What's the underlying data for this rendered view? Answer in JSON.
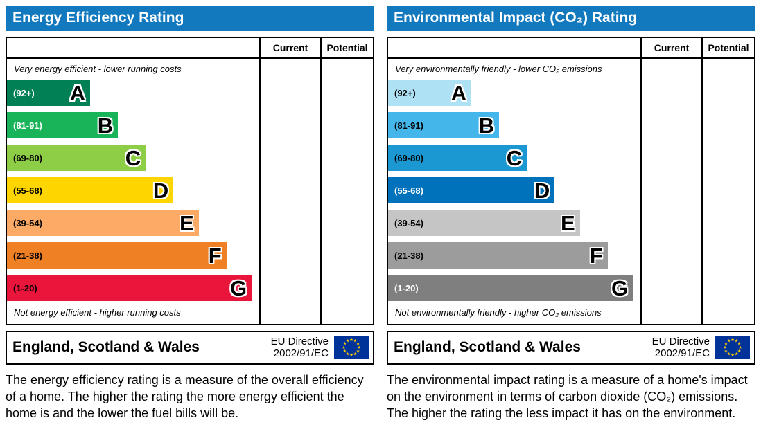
{
  "theme": {
    "header_bg": "#1279be",
    "border_color": "#000000",
    "eu_flag_bg": "#003399",
    "eu_flag_star": "#ffcc00"
  },
  "icons": {
    "eu_flag_star_glyph": "★"
  },
  "panels": [
    {
      "title": "Energy Efficiency Rating",
      "columns": [
        "Current",
        "Potential"
      ],
      "top_caption": "Very energy efficient - lower running costs",
      "bottom_caption": "Not energy efficient - higher running costs",
      "bands": [
        {
          "letter": "A",
          "range": "(92+)",
          "color": "#008054",
          "width_pct": 33,
          "range_text_color": "#ffffff"
        },
        {
          "letter": "B",
          "range": "(81-91)",
          "color": "#19b459",
          "width_pct": 44,
          "range_text_color": "#ffffff"
        },
        {
          "letter": "C",
          "range": "(69-80)",
          "color": "#8dce46",
          "width_pct": 55,
          "range_text_color": "#000000"
        },
        {
          "letter": "D",
          "range": "(55-68)",
          "color": "#ffd500",
          "width_pct": 66,
          "range_text_color": "#000000"
        },
        {
          "letter": "E",
          "range": "(39-54)",
          "color": "#fcaa65",
          "width_pct": 76,
          "range_text_color": "#000000"
        },
        {
          "letter": "F",
          "range": "(21-38)",
          "color": "#ef8023",
          "width_pct": 87,
          "range_text_color": "#000000"
        },
        {
          "letter": "G",
          "range": "(1-20)",
          "color": "#e9153b",
          "width_pct": 97,
          "range_text_color": "#000000"
        }
      ],
      "footer": {
        "region": "England, Scotland & Wales",
        "directive_line1": "EU Directive",
        "directive_line2": "2002/91/EC"
      },
      "description": "The energy efficiency rating is a measure of the overall efficiency of a home. The higher the rating the more energy efficient the home is and the lower the fuel bills will be."
    },
    {
      "title": "Environmental Impact (CO₂) Rating",
      "columns": [
        "Current",
        "Potential"
      ],
      "top_caption": "Very environmentally friendly - lower CO₂ emissions",
      "bottom_caption": "Not environmentally friendly - higher CO₂ emissions",
      "bands": [
        {
          "letter": "A",
          "range": "(92+)",
          "color": "#aee1f4",
          "width_pct": 33,
          "range_text_color": "#000000"
        },
        {
          "letter": "B",
          "range": "(81-91)",
          "color": "#44b6e9",
          "width_pct": 44,
          "range_text_color": "#000000"
        },
        {
          "letter": "C",
          "range": "(69-80)",
          "color": "#1b98d2",
          "width_pct": 55,
          "range_text_color": "#000000"
        },
        {
          "letter": "D",
          "range": "(55-68)",
          "color": "#0072bb",
          "width_pct": 66,
          "range_text_color": "#ffffff"
        },
        {
          "letter": "E",
          "range": "(39-54)",
          "color": "#c5c5c5",
          "width_pct": 76,
          "range_text_color": "#000000"
        },
        {
          "letter": "F",
          "range": "(21-38)",
          "color": "#9c9c9c",
          "width_pct": 87,
          "range_text_color": "#000000"
        },
        {
          "letter": "G",
          "range": "(1-20)",
          "color": "#7f7f7f",
          "width_pct": 97,
          "range_text_color": "#ffffff"
        }
      ],
      "footer": {
        "region": "England, Scotland & Wales",
        "directive_line1": "EU Directive",
        "directive_line2": "2002/91/EC"
      },
      "description": "The environmental impact rating is a measure of a home's impact on the environment in terms of carbon dioxide (CO₂) emissions. The higher the rating the less impact it has on the environment."
    }
  ],
  "chart_data": [
    {
      "type": "table",
      "title": "Energy Efficiency Rating",
      "columns": [
        "Current",
        "Potential"
      ],
      "current_value": "",
      "potential_value": "",
      "bands": [
        {
          "letter": "A",
          "range": "92+",
          "color": "#008054",
          "relative_width": 33
        },
        {
          "letter": "B",
          "range": "81-91",
          "color": "#19b459",
          "relative_width": 44
        },
        {
          "letter": "C",
          "range": "69-80",
          "color": "#8dce46",
          "relative_width": 55
        },
        {
          "letter": "D",
          "range": "55-68",
          "color": "#ffd500",
          "relative_width": 66
        },
        {
          "letter": "E",
          "range": "39-54",
          "color": "#fcaa65",
          "relative_width": 76
        },
        {
          "letter": "F",
          "range": "21-38",
          "color": "#ef8023",
          "relative_width": 87
        },
        {
          "letter": "G",
          "range": "1-20",
          "color": "#e9153b",
          "relative_width": 97
        }
      ],
      "annotations": [
        "Very energy efficient - lower running costs",
        "Not energy efficient - higher running costs",
        "England, Scotland & Wales",
        "EU Directive 2002/91/EC"
      ]
    },
    {
      "type": "table",
      "title": "Environmental Impact (CO₂) Rating",
      "columns": [
        "Current",
        "Potential"
      ],
      "current_value": "",
      "potential_value": "",
      "bands": [
        {
          "letter": "A",
          "range": "92+",
          "color": "#aee1f4",
          "relative_width": 33
        },
        {
          "letter": "B",
          "range": "81-91",
          "color": "#44b6e9",
          "relative_width": 44
        },
        {
          "letter": "C",
          "range": "69-80",
          "color": "#1b98d2",
          "relative_width": 55
        },
        {
          "letter": "D",
          "range": "55-68",
          "color": "#0072bb",
          "relative_width": 66
        },
        {
          "letter": "E",
          "range": "39-54",
          "color": "#c5c5c5",
          "relative_width": 76
        },
        {
          "letter": "F",
          "range": "21-38",
          "color": "#9c9c9c",
          "relative_width": 87
        },
        {
          "letter": "G",
          "range": "1-20",
          "color": "#7f7f7f",
          "relative_width": 97
        }
      ],
      "annotations": [
        "Very environmentally friendly - lower CO₂ emissions",
        "Not environmentally friendly - higher CO₂ emissions",
        "England, Scotland & Wales",
        "EU Directive 2002/91/EC"
      ]
    }
  ]
}
